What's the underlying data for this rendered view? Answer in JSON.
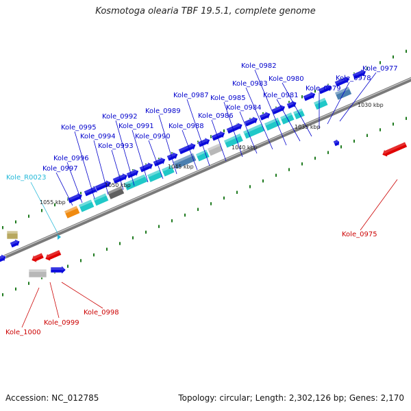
{
  "title": "Kosmotoga olearia TBF 19.5.1, complete genome",
  "footer": {
    "accession": "Accession: NC_012785",
    "summary": "Topology: circular; Length: 2,302,126 bp; Genes: 2,170"
  },
  "colors": {
    "forward_cds": "#0a0adc",
    "reverse_cds": "#e00000",
    "backbone": "#7a7a7a",
    "cog_cyan": "#20c8c8",
    "cog_orange": "#f08a10",
    "cog_gray": "#606060",
    "cog_steelblue": "#4a7fb0",
    "cog_lightgray": "#b8b8b8",
    "cog_olive": "#b8a860",
    "tick_green": "#1e7a1e",
    "label_blue": "#0000cc",
    "label_red": "#cc0000",
    "label_cyan": "#22b8d8"
  },
  "ticks": [
    "1055 kbp",
    "1050 kbp",
    "1045 kbp",
    "1040 kbp",
    "1035 kbp",
    "1030 kbp"
  ],
  "labels_forward": [
    "Kole_0997",
    "Kole_0996",
    "Kole_0995",
    "Kole_0994",
    "Kole_0993",
    "Kole_0992",
    "Kole_0991",
    "Kole_0990",
    "Kole_0989",
    "Kole_0988",
    "Kole_0987",
    "Kole_0986",
    "Kole_0985",
    "Kole_0984",
    "Kole_0983",
    "Kole_0982",
    "Kole_0981",
    "Kole_0980",
    "Kole_0979",
    "Kole_0978",
    "Kole_0977"
  ],
  "labels_rna": [
    "Kole_R0023"
  ],
  "labels_reverse": [
    "Kole_0975",
    "Kole_0998",
    "Kole_0999",
    "Kole_1000"
  ]
}
